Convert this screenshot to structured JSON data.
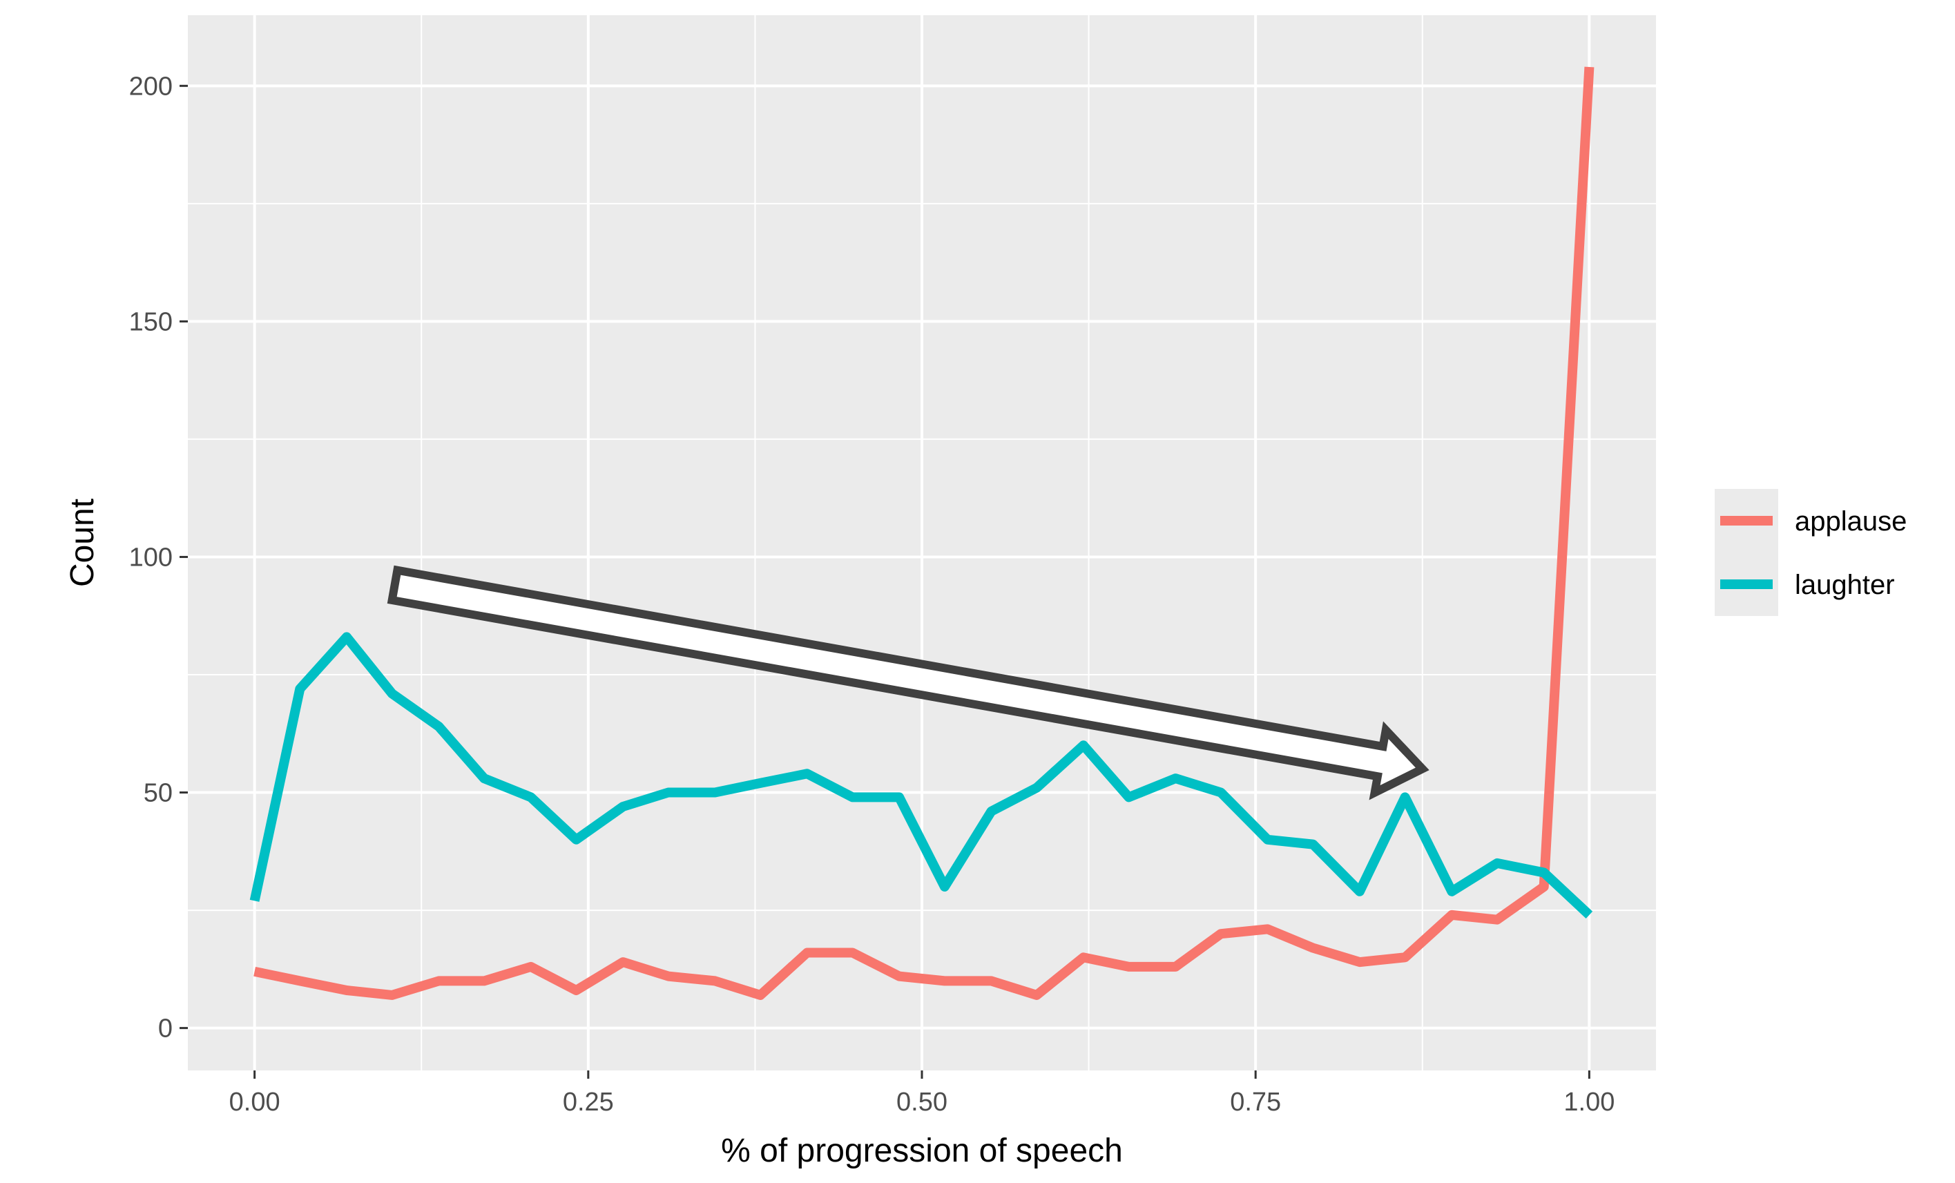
{
  "chart_data": {
    "type": "line",
    "title": "",
    "xlabel": "% of progression of speech",
    "ylabel": "Count",
    "xlim": [
      -0.05,
      1.05
    ],
    "ylim": [
      -9,
      215
    ],
    "x_ticks": [
      0.0,
      0.25,
      0.5,
      0.75,
      1.0
    ],
    "x_tick_labels": [
      "0.00",
      "0.25",
      "0.50",
      "0.75",
      "1.00"
    ],
    "y_ticks": [
      0,
      50,
      100,
      150,
      200
    ],
    "y_tick_labels": [
      "0",
      "50",
      "100",
      "150",
      "200"
    ],
    "grid": true,
    "legend_position": "right",
    "series": [
      {
        "name": "applause",
        "color": "#F8766D",
        "x": [
          0.0,
          0.034,
          0.069,
          0.103,
          0.138,
          0.172,
          0.207,
          0.241,
          0.276,
          0.31,
          0.345,
          0.379,
          0.414,
          0.448,
          0.483,
          0.517,
          0.552,
          0.586,
          0.621,
          0.655,
          0.69,
          0.724,
          0.759,
          0.793,
          0.828,
          0.862,
          0.897,
          0.931,
          0.966,
          1.0
        ],
        "values": [
          12,
          10,
          8,
          7,
          10,
          10,
          13,
          8,
          14,
          11,
          10,
          7,
          16,
          16,
          11,
          10,
          10,
          7,
          15,
          13,
          13,
          20,
          21,
          17,
          14,
          15,
          24,
          23,
          30,
          204
        ]
      },
      {
        "name": "laughter",
        "color": "#00BFC4",
        "x": [
          0.0,
          0.034,
          0.069,
          0.103,
          0.138,
          0.172,
          0.207,
          0.241,
          0.276,
          0.31,
          0.345,
          0.379,
          0.414,
          0.448,
          0.483,
          0.517,
          0.552,
          0.586,
          0.621,
          0.655,
          0.69,
          0.724,
          0.759,
          0.793,
          0.828,
          0.862,
          0.897,
          0.931,
          0.966,
          1.0
        ],
        "values": [
          27,
          72,
          83,
          71,
          64,
          53,
          49,
          40,
          47,
          50,
          50,
          52,
          54,
          49,
          49,
          30,
          46,
          51,
          60,
          49,
          53,
          50,
          40,
          39,
          29,
          49,
          29,
          35,
          33,
          24
        ]
      }
    ],
    "annotations": [
      {
        "type": "arrow",
        "from": [
          0.105,
          94
        ],
        "to": [
          0.875,
          55
        ],
        "fill": "#ffffff",
        "stroke": "#404040"
      }
    ]
  }
}
